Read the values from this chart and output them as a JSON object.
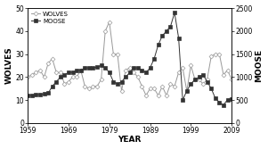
{
  "title": "",
  "xlabel": "YEAR",
  "ylabel_left": "WOLVES",
  "ylabel_right": "MOOSE",
  "xlim": [
    1959,
    2009
  ],
  "ylim_wolves": [
    0,
    50
  ],
  "ylim_moose": [
    0,
    2500
  ],
  "yticks_wolves": [
    0,
    10,
    20,
    30,
    40,
    50
  ],
  "yticks_moose": [
    0,
    500,
    1000,
    1500,
    2000,
    2500
  ],
  "xticks": [
    1959,
    1969,
    1979,
    1989,
    1999,
    2009
  ],
  "wolves": {
    "years": [
      1959,
      1960,
      1961,
      1962,
      1963,
      1964,
      1965,
      1966,
      1967,
      1968,
      1969,
      1970,
      1971,
      1972,
      1973,
      1974,
      1975,
      1976,
      1977,
      1978,
      1979,
      1980,
      1981,
      1982,
      1983,
      1984,
      1985,
      1986,
      1987,
      1988,
      1989,
      1990,
      1991,
      1992,
      1993,
      1994,
      1995,
      1996,
      1997,
      1998,
      1999,
      2000,
      2001,
      2002,
      2003,
      2004,
      2005,
      2006,
      2007,
      2008,
      2009
    ],
    "values": [
      20,
      21,
      22,
      23,
      20,
      26,
      28,
      22,
      22,
      17,
      18,
      20,
      20,
      23,
      16,
      15,
      16,
      16,
      19,
      40,
      44,
      30,
      30,
      14,
      23,
      24,
      22,
      20,
      16,
      12,
      15,
      15,
      12,
      16,
      12,
      17,
      16,
      22,
      24,
      14,
      25,
      19,
      19,
      17,
      19,
      29,
      30,
      30,
      21,
      23,
      19
    ]
  },
  "moose": {
    "years": [
      1959,
      1960,
      1961,
      1962,
      1963,
      1964,
      1965,
      1966,
      1967,
      1968,
      1969,
      1970,
      1971,
      1972,
      1973,
      1974,
      1975,
      1976,
      1977,
      1978,
      1979,
      1980,
      1981,
      1982,
      1983,
      1984,
      1985,
      1986,
      1987,
      1988,
      1989,
      1990,
      1991,
      1992,
      1993,
      1994,
      1995,
      1996,
      1997,
      1998,
      1999,
      2000,
      2001,
      2002,
      2003,
      2004,
      2005,
      2006,
      2007,
      2008,
      2009
    ],
    "values": [
      600,
      600,
      610,
      620,
      630,
      650,
      800,
      900,
      1000,
      1050,
      1100,
      1100,
      1150,
      1150,
      1200,
      1200,
      1200,
      1220,
      1250,
      1200,
      1100,
      900,
      850,
      900,
      1000,
      1100,
      1200,
      1200,
      1150,
      1100,
      1200,
      1400,
      1700,
      1900,
      2000,
      2100,
      2400,
      1850,
      500,
      700,
      850,
      950,
      1000,
      1050,
      900,
      750,
      540,
      450,
      390,
      510,
      530
    ]
  },
  "wolf_color": "#999999",
  "moose_color": "#333333",
  "bg_color": "#ffffff",
  "legend_fontsize": 5,
  "axis_label_fontsize": 6.5,
  "tick_fontsize": 5.5,
  "line_width": 0.7,
  "wolf_marker": "D",
  "moose_marker": "s",
  "marker_size_wolf": 2.5,
  "marker_size_moose": 2.5
}
